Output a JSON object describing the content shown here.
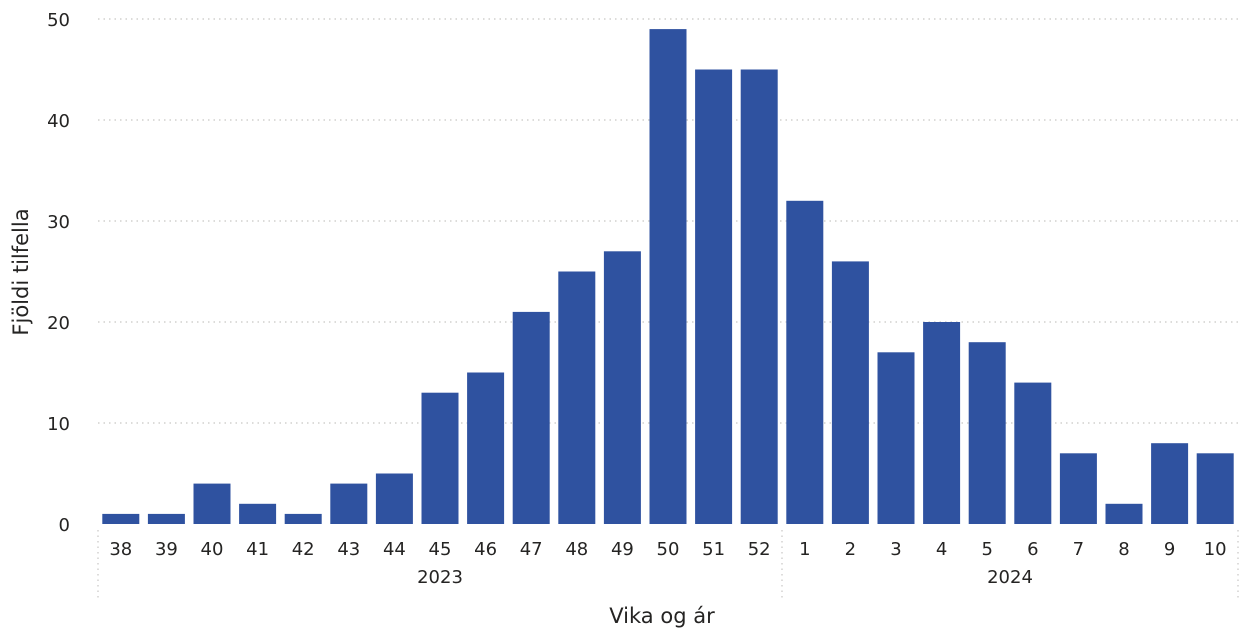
{
  "colors": {
    "bar": "#2F52A0",
    "gridline": "#C8C6C4",
    "text": "#252423"
  },
  "chart_data": {
    "type": "bar",
    "xlabel": "Vika og ár",
    "ylabel": "Fjöldi tilfella",
    "ylim": [
      0,
      50
    ],
    "yticks": [
      0,
      10,
      20,
      30,
      40,
      50
    ],
    "grid": true,
    "categories": [
      "38",
      "39",
      "40",
      "41",
      "42",
      "43",
      "44",
      "45",
      "46",
      "47",
      "48",
      "49",
      "50",
      "51",
      "52",
      "1",
      "2",
      "3",
      "4",
      "5",
      "6",
      "7",
      "8",
      "9",
      "10"
    ],
    "groups": [
      {
        "label": "2023",
        "count": 15
      },
      {
        "label": "2024",
        "count": 10
      }
    ],
    "values": [
      1,
      1,
      4,
      2,
      1,
      4,
      5,
      13,
      15,
      21,
      25,
      27,
      49,
      45,
      45,
      32,
      26,
      17,
      20,
      18,
      14,
      7,
      2,
      8,
      7
    ]
  }
}
